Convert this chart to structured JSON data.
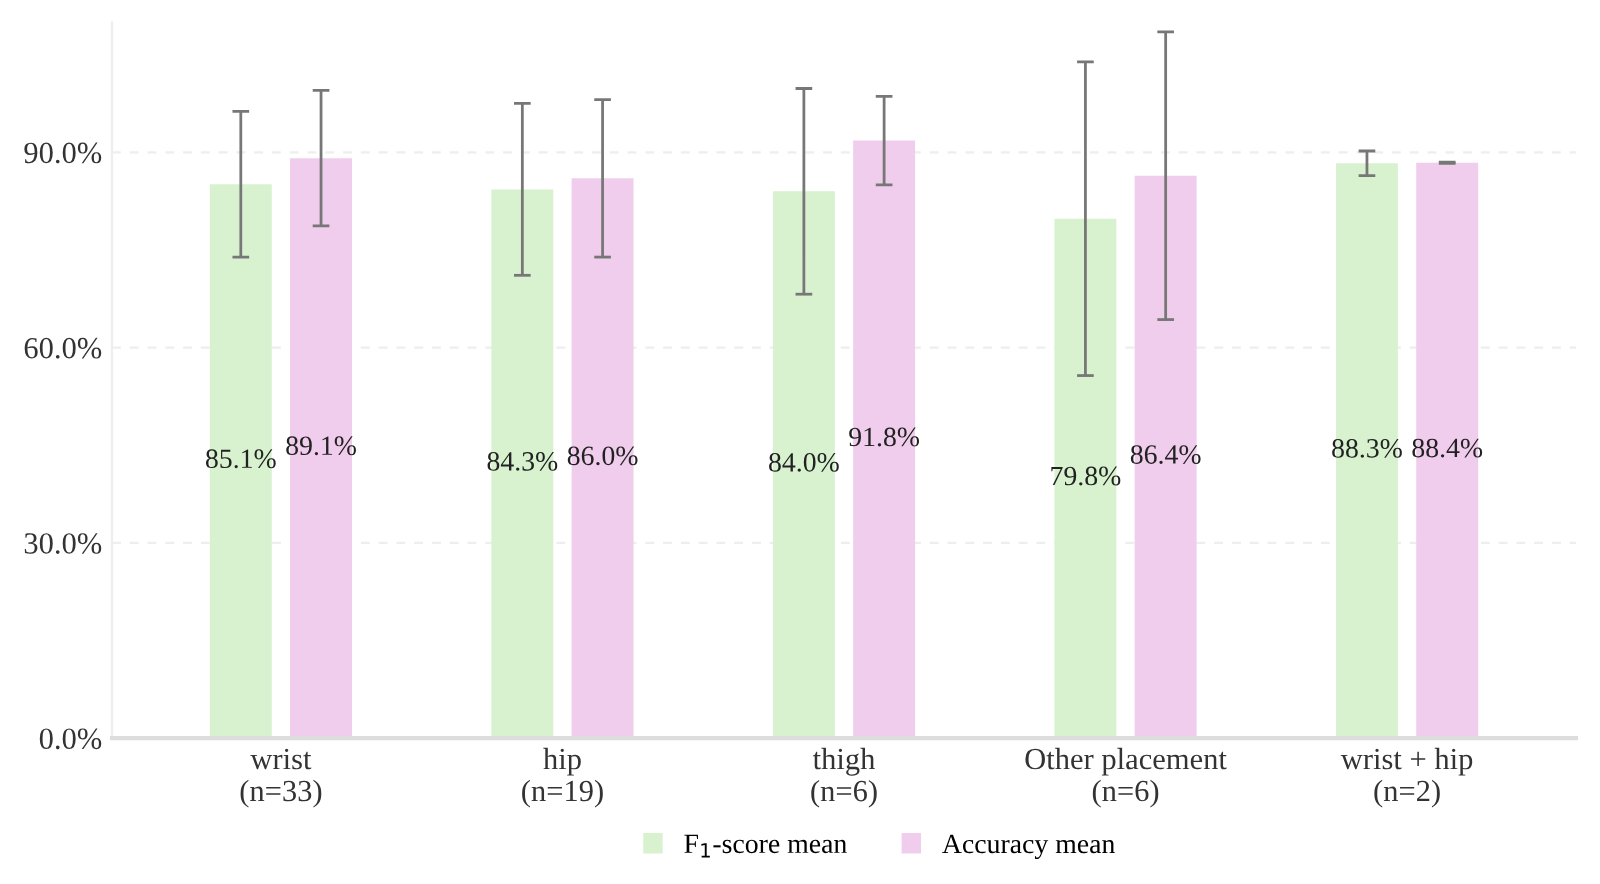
{
  "chart_data": {
    "type": "bar",
    "categories": [
      "wrist\n(n=33)",
      "hip\n(n=19)",
      "thigh\n(n=6)",
      "Other placement\n(n=6)",
      "wrist + hip\n(n=2)"
    ],
    "series": [
      {
        "name": "F$_{1}$-score mean",
        "color": "#d8f2d0",
        "values": [
          85.1,
          84.3,
          84.0,
          79.8,
          88.3
        ],
        "errors": [
          11.2,
          13.2,
          15.8,
          24.1,
          1.9
        ],
        "value_labels": [
          "85.1%",
          "84.3%",
          "84.0%",
          "79.8%",
          "88.3%"
        ]
      },
      {
        "name": "Accuracy mean",
        "color": "#f0cdec",
        "values": [
          89.1,
          86.0,
          91.8,
          86.4,
          88.4
        ],
        "errors": [
          10.4,
          12.1,
          6.8,
          22.1,
          0.1
        ],
        "value_labels": [
          "89.1%",
          "86.0%",
          "91.8%",
          "86.4%",
          "88.4%"
        ]
      }
    ],
    "ylim": [
      0,
      110
    ],
    "yticks": [
      {
        "value": 0,
        "label": "0.0%"
      },
      {
        "value": 30,
        "label": "30.0%"
      },
      {
        "value": 60,
        "label": "60.0%"
      },
      {
        "value": 90,
        "label": "90.0%"
      }
    ],
    "grid": "y",
    "legend": "bottom"
  }
}
